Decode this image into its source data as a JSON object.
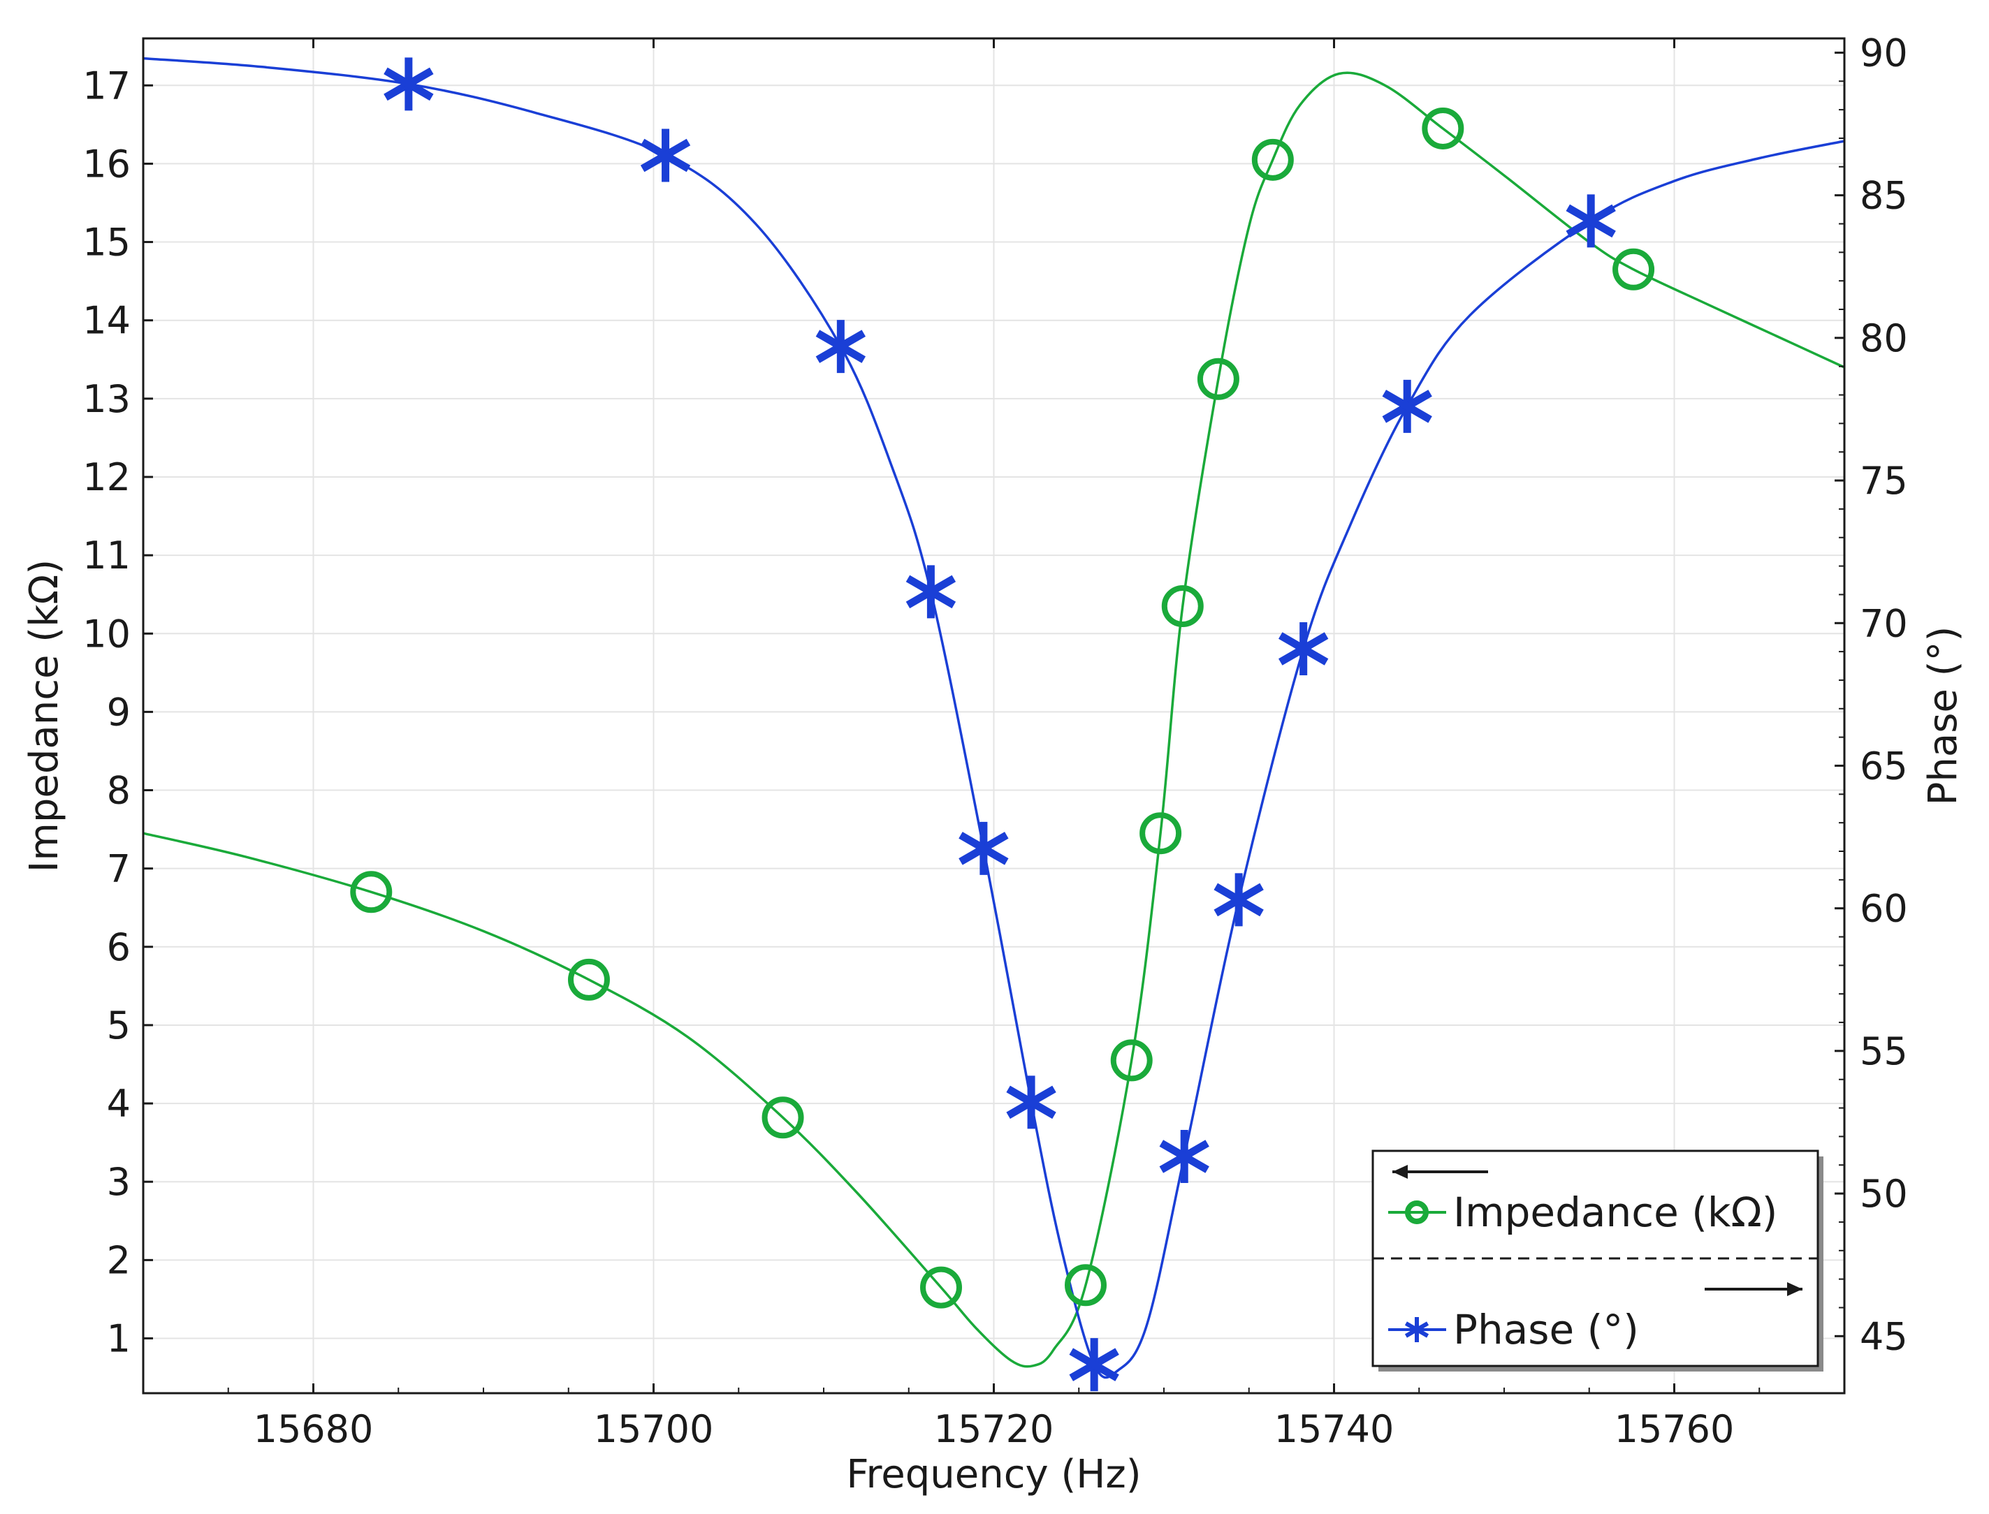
{
  "chart_data": {
    "type": "line",
    "xlabel": "Frequency (Hz)",
    "ylabel": "Impedance (kΩ)",
    "y2label": "Phase (°)",
    "xlim": [
      15670,
      15770
    ],
    "ylim": [
      0.3,
      17.6
    ],
    "y2lim": [
      43,
      90.5
    ],
    "xticks": [
      15680,
      15700,
      15720,
      15740,
      15760
    ],
    "yticks": [
      1,
      2,
      3,
      4,
      5,
      6,
      7,
      8,
      9,
      10,
      11,
      12,
      13,
      14,
      15,
      16,
      17
    ],
    "y2ticks": [
      45,
      50,
      55,
      60,
      65,
      70,
      75,
      80,
      85,
      90
    ],
    "grid": true,
    "legend_position": "bottom-right",
    "colors": {
      "impedance": "#1aaa3a",
      "phase": "#1a3fd6"
    },
    "series": [
      {
        "name": "Impedance (kΩ)",
        "axis": "left",
        "marker": "circle",
        "x": [
          15670,
          15676,
          15683.4,
          15690,
          15696.2,
          15702,
          15707.6,
          15712,
          15716.9,
          15719,
          15721,
          15722.3,
          15723.5,
          15725.4,
          15728.1,
          15729.8,
          15731.1,
          15733.2,
          15735,
          15736.4,
          15738,
          15740.3,
          15743,
          15746.4,
          15750,
          15755,
          15757.6,
          15762,
          15766,
          15770
        ],
        "y": [
          7.45,
          7.15,
          6.7,
          6.2,
          5.58,
          4.85,
          3.82,
          2.85,
          1.65,
          1.12,
          0.72,
          0.65,
          0.85,
          1.68,
          4.55,
          7.45,
          10.35,
          13.25,
          15.2,
          16.05,
          16.75,
          17.15,
          17.0,
          16.45,
          15.85,
          15.0,
          14.65,
          14.2,
          13.8,
          13.4
        ]
      },
      {
        "name": "Phase (°)",
        "axis": "right",
        "marker": "asterisk",
        "x": [
          15670,
          15677,
          15685.6,
          15693,
          15700.7,
          15706,
          15711,
          15714,
          15716.3,
          15719.4,
          15722.2,
          15724,
          15725.9,
          15727.3,
          15729,
          15731.2,
          15734.4,
          15738.2,
          15741,
          15744.3,
          15748,
          15755.1,
          15760,
          15765,
          15770
        ],
        "y": [
          89.8,
          89.5,
          88.9,
          87.9,
          86.4,
          84.0,
          79.7,
          75.5,
          71.1,
          62.1,
          53.2,
          48.0,
          44.0,
          43.8,
          45.4,
          51.3,
          60.3,
          69.1,
          73.5,
          77.6,
          80.8,
          84.1,
          85.5,
          86.3,
          86.9
        ]
      }
    ]
  }
}
